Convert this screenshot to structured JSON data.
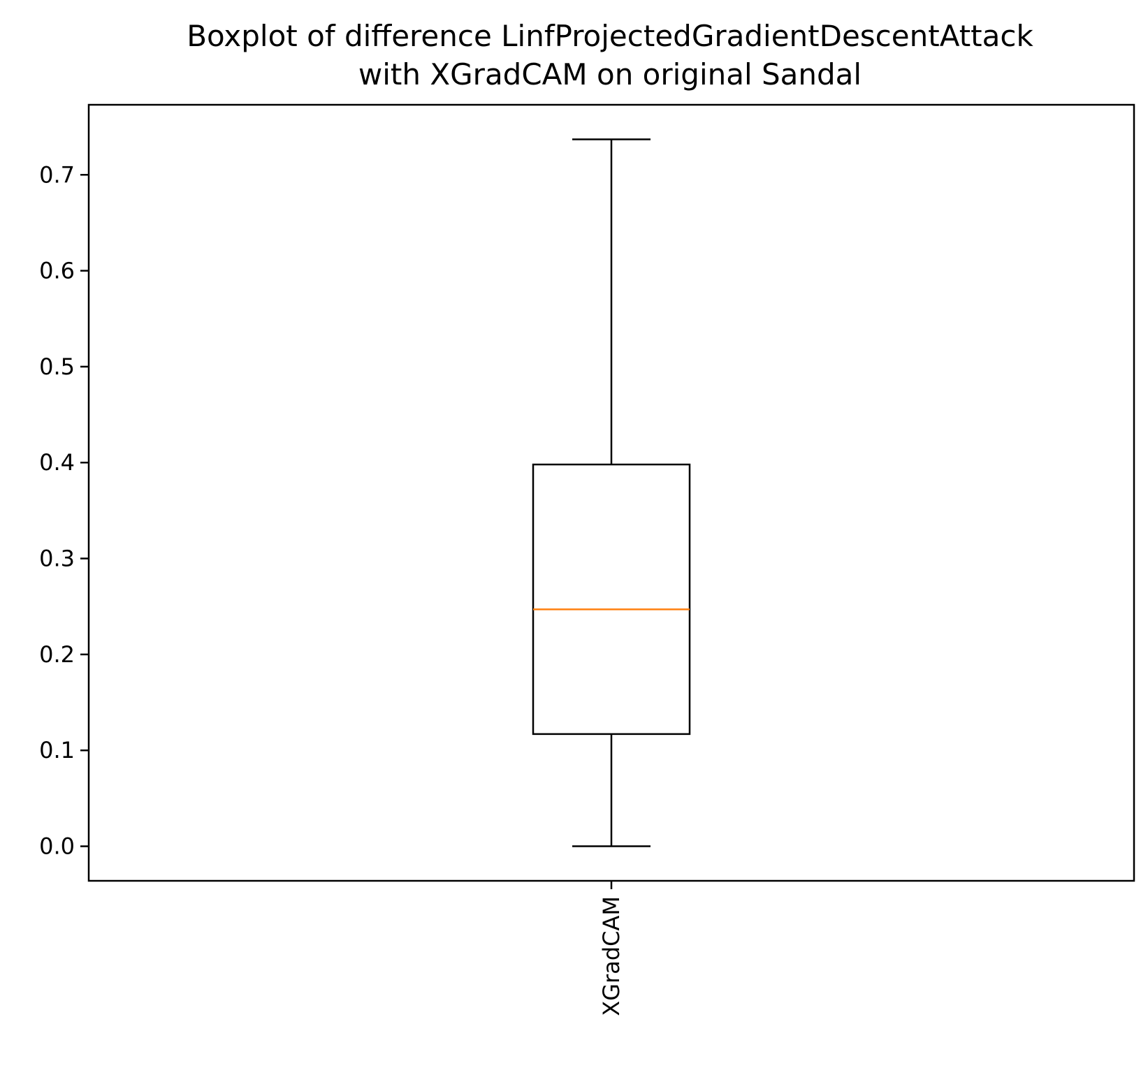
{
  "chart_data": {
    "type": "boxplot",
    "title_lines": [
      "Boxplot of difference LinfProjectedGradientDescentAttack",
      "with XGradCAM on original Sandal"
    ],
    "xlabel": "",
    "ylabel": "",
    "categories": [
      "XGradCAM"
    ],
    "series": [
      {
        "whisker_low": 0.0,
        "q1": 0.117,
        "median": 0.247,
        "q3": 0.398,
        "whisker_high": 0.737
      }
    ],
    "ylim": [
      -0.036,
      0.773
    ],
    "yticks": [
      0.0,
      0.1,
      0.2,
      0.3,
      0.4,
      0.5,
      0.6,
      0.7
    ],
    "ytick_labels": [
      "0.0",
      "0.1",
      "0.2",
      "0.3",
      "0.4",
      "0.5",
      "0.6",
      "0.7"
    ],
    "grid": false,
    "colors": {
      "box": "#000000",
      "median": "#ff7f0e",
      "axes": "#000000"
    }
  }
}
